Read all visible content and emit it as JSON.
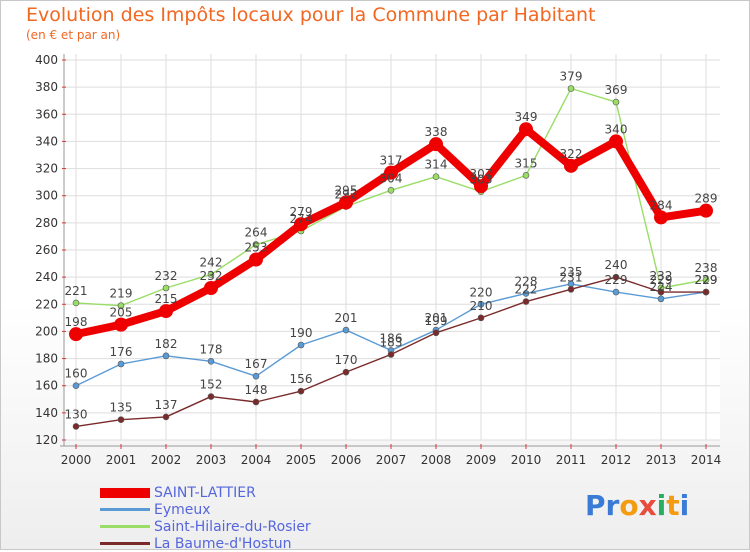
{
  "title": "Evolution des Impôts locaux pour la Commune par Habitant",
  "subtitle": "(en € et par an)",
  "logo_text": "Proxiti",
  "chart_data": {
    "type": "line",
    "title": "Evolution des Impôts locaux pour la Commune par Habitant",
    "subtitle": "(en € et par an)",
    "xlabel": "",
    "ylabel": "",
    "categories": [
      "2000",
      "2001",
      "2002",
      "2003",
      "2004",
      "2005",
      "2006",
      "2007",
      "2008",
      "2009",
      "2010",
      "2011",
      "2012",
      "2013",
      "2014"
    ],
    "ylim": [
      120,
      400
    ],
    "yticks": [
      120,
      140,
      160,
      180,
      200,
      220,
      240,
      260,
      280,
      300,
      320,
      340,
      360,
      380,
      400
    ],
    "grid": true,
    "legend_position": "bottom-left",
    "series": [
      {
        "name": "SAINT-LATTIER",
        "color": "#ee0000",
        "width": 8,
        "values": [
          198,
          205,
          215,
          232,
          253,
          279,
          295,
          317,
          338,
          307,
          349,
          322,
          340,
          284,
          289
        ]
      },
      {
        "name": "Eymeux",
        "color": "#5b9bd5",
        "width": 1.4,
        "values": [
          160,
          176,
          182,
          178,
          167,
          190,
          201,
          186,
          201,
          220,
          228,
          235,
          229,
          224,
          229
        ]
      },
      {
        "name": "Saint-Hilaire-du-Rosier",
        "color": "#99dd66",
        "width": 1.4,
        "values": [
          221,
          219,
          232,
          242,
          264,
          274,
          292,
          304,
          314,
          303,
          315,
          379,
          369,
          232,
          238
        ]
      },
      {
        "name": "La Baume-d'Hostun",
        "color": "#7a2a2a",
        "width": 1.4,
        "values": [
          130,
          135,
          137,
          152,
          148,
          156,
          170,
          183,
          199,
          210,
          222,
          231,
          240,
          229,
          229
        ]
      }
    ]
  }
}
